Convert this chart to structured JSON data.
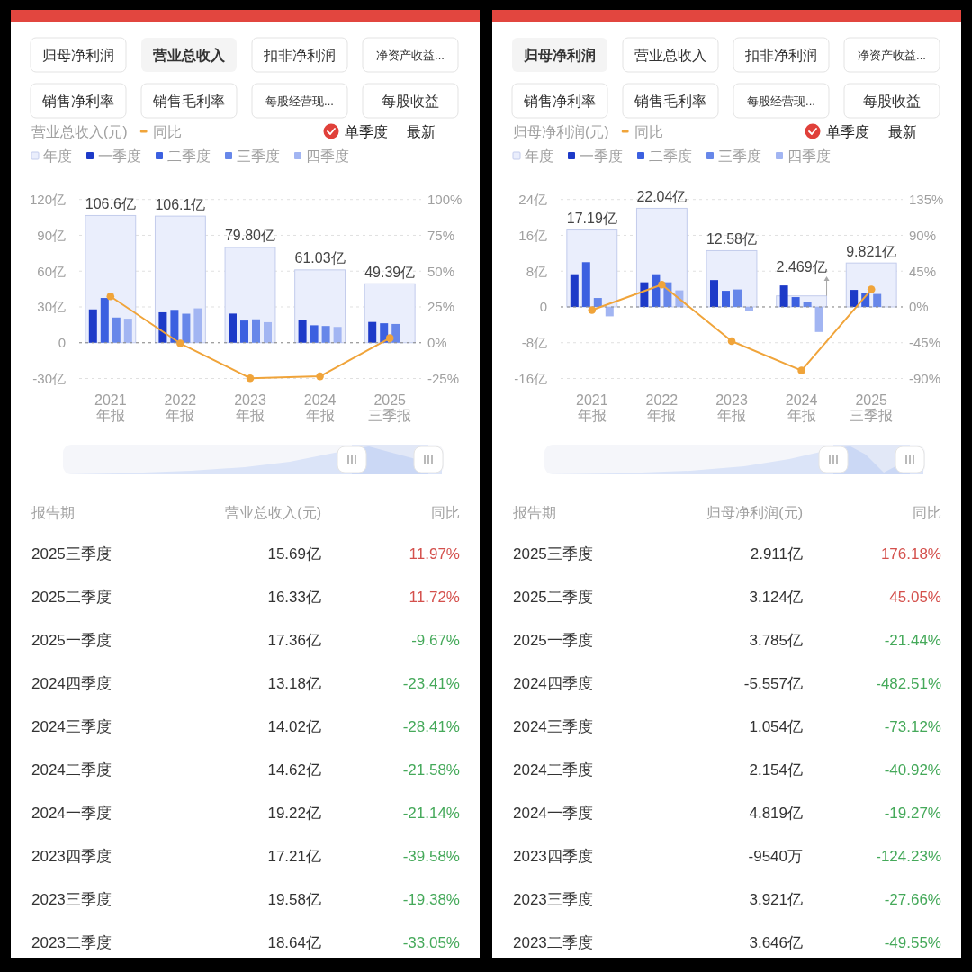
{
  "chart_data": [
    {
      "type": "other",
      "categories": [
        "归母净利润",
        "营业总收入",
        "扣非净利润",
        "净资产收益...",
        "销售净利率",
        "销售毛利率",
        "每股经营现...",
        "每股收益"
      ],
      "colors": [
        "#ffffff",
        "#f4f4f4",
        "#ffffff",
        "#ffffff",
        "#ffffff",
        "#ffffff",
        "#ffffff",
        "#ffffff"
      ]
    },
    {
      "type": "bar",
      "ylabel": "营业总收入(元)",
      "annotations": [
        "单季度",
        "最新"
      ],
      "categories": [
        "2021\n年报",
        "2022\n年报",
        "2023\n年报",
        "2024\n年报",
        "2025\n三季报"
      ],
      "series": [
        {
          "name": "同比",
          "type": "line",
          "axis": "y2",
          "color": "#f0a43a",
          "values": [
            32.4,
            -0.5,
            -24.8,
            -23.5,
            3.2
          ]
        },
        {
          "name": "年度",
          "color": "#eaeefc",
          "values": [
            106.6,
            106.1,
            79.8,
            61.03,
            49.39
          ],
          "value_labels": [
            "106.6亿",
            "106.1亿",
            "79.80亿",
            "61.03亿",
            "49.39亿"
          ]
        },
        {
          "name": "一季度",
          "color": "#1d3ac8",
          "values": [
            27.9,
            25.5,
            24.4,
            19.2,
            17.4
          ]
        },
        {
          "name": "二季度",
          "color": "#3c60e0",
          "values": [
            37.5,
            27.5,
            18.6,
            14.6,
            16.3
          ]
        },
        {
          "name": "三季度",
          "color": "#6787e9",
          "values": [
            21.1,
            24.3,
            19.6,
            14.0,
            15.7
          ]
        },
        {
          "name": "四季度",
          "color": "#a2b5f2",
          "values": [
            20.1,
            28.8,
            17.2,
            13.2,
            null
          ]
        }
      ],
      "ylim": [
        -30,
        120
      ],
      "yticks": [
        {
          "value": -30,
          "label": "-30亿"
        },
        0,
        {
          "value": 30,
          "label": "30亿"
        },
        {
          "value": 60,
          "label": "60亿"
        },
        {
          "value": 90,
          "label": "90亿"
        },
        {
          "value": 120,
          "label": "120亿"
        }
      ],
      "y2lim": [
        -25,
        100
      ],
      "y2ticks": [
        {
          "value": -25,
          "label": "-25%"
        },
        {
          "value": 0,
          "label": "0%"
        },
        {
          "value": 25,
          "label": "25%"
        },
        {
          "value": 50,
          "label": "50%"
        },
        {
          "value": 75,
          "label": "75%"
        },
        {
          "value": 100,
          "label": "100%"
        }
      ],
      "ref_lines": [
        {
          "axis": "y",
          "value": 0,
          "color": "#8a8a8a",
          "line_style": "dashed"
        }
      ],
      "grid": "y",
      "legend": "top left",
      "marker": "circle"
    },
    {
      "type": "other",
      "xlabel": "报告期",
      "categories": [
        "2025三季度",
        "2025二季度",
        "2025一季度",
        "2024四季度",
        "2024三季度",
        "2024二季度",
        "2024一季度",
        "2023四季度",
        "2023三季度",
        "2023二季度"
      ],
      "series": [
        {
          "name": "营业总收入(元)",
          "values": [
            15.69,
            16.33,
            17.36,
            13.18,
            14.02,
            14.62,
            19.22,
            17.21,
            19.58,
            18.64
          ],
          "value_labels": [
            "15.69亿",
            "16.33亿",
            "17.36亿",
            "13.18亿",
            "14.02亿",
            "14.62亿",
            "19.22亿",
            "17.21亿",
            "19.58亿",
            "18.64亿"
          ]
        },
        {
          "name": "同比",
          "values": [
            11.97,
            11.72,
            -9.67,
            -23.41,
            -28.41,
            -21.58,
            -21.14,
            -39.58,
            -19.38,
            -33.05
          ],
          "value_labels": [
            "11.97%",
            "11.72%",
            "-9.67%",
            "-23.41%",
            "-28.41%",
            "-21.58%",
            "-21.14%",
            "-39.58%",
            "-19.38%",
            "-33.05%"
          ],
          "colors": [
            "#d4504c",
            "#d4504c",
            "#45a95a",
            "#45a95a",
            "#45a95a",
            "#45a95a",
            "#45a95a",
            "#45a95a",
            "#45a95a",
            "#45a95a"
          ]
        }
      ]
    },
    {
      "type": "other",
      "categories": [
        "归母净利润",
        "营业总收入",
        "扣非净利润",
        "净资产收益...",
        "销售净利率",
        "销售毛利率",
        "每股经营现...",
        "每股收益"
      ],
      "colors": [
        "#f4f4f4",
        "#ffffff",
        "#ffffff",
        "#ffffff",
        "#ffffff",
        "#ffffff",
        "#ffffff",
        "#ffffff"
      ]
    },
    {
      "type": "bar",
      "ylabel": "归母净利润(元)",
      "annotations": [
        "单季度",
        "最新"
      ],
      "categories": [
        "2021\n年报",
        "2022\n年报",
        "2023\n年报",
        "2024\n年报",
        "2025\n三季报"
      ],
      "series": [
        {
          "name": "同比",
          "type": "line",
          "axis": "y2",
          "color": "#f0a43a",
          "values": [
            -4,
            28,
            -43,
            -80,
            22
          ]
        },
        {
          "name": "年度",
          "color": "#eaeefc",
          "values": [
            17.19,
            22.04,
            12.58,
            2.469,
            9.821
          ],
          "value_labels": [
            "17.19亿",
            "22.04亿",
            "12.58亿",
            "2.469亿",
            "9.821亿"
          ]
        },
        {
          "name": "一季度",
          "color": "#1d3ac8",
          "values": [
            7.3,
            5.5,
            6.0,
            4.8,
            3.8
          ]
        },
        {
          "name": "二季度",
          "color": "#3c60e0",
          "values": [
            10.0,
            7.3,
            3.6,
            2.2,
            3.1
          ]
        },
        {
          "name": "三季度",
          "color": "#6787e9",
          "values": [
            2.0,
            5.5,
            3.9,
            1.1,
            2.9
          ]
        },
        {
          "name": "四季度",
          "color": "#a2b5f2",
          "values": [
            -2.1,
            3.7,
            -1.0,
            -5.6,
            null
          ]
        }
      ],
      "ylim": [
        -16,
        24
      ],
      "yticks": [
        {
          "value": -16,
          "label": "-16亿"
        },
        {
          "value": -8,
          "label": "-8亿"
        },
        0,
        {
          "value": 8,
          "label": "8亿"
        },
        {
          "value": 16,
          "label": "16亿"
        },
        {
          "value": 24,
          "label": "24亿"
        }
      ],
      "y2lim": [
        -90,
        135
      ],
      "y2ticks": [
        {
          "value": -90,
          "label": "-90%"
        },
        {
          "value": -45,
          "label": "-45%"
        },
        {
          "value": 0,
          "label": "0%"
        },
        {
          "value": 45,
          "label": "45%"
        },
        {
          "value": 90,
          "label": "90%"
        },
        {
          "value": 135,
          "label": "135%"
        }
      ],
      "ref_lines": [
        {
          "axis": "y",
          "value": 0,
          "color": "#8a8a8a",
          "line_style": "dashed"
        }
      ],
      "grid": "y",
      "legend": "top left",
      "marker": "circle"
    },
    {
      "type": "other",
      "xlabel": "报告期",
      "categories": [
        "2025三季度",
        "2025二季度",
        "2025一季度",
        "2024四季度",
        "2024三季度",
        "2024二季度",
        "2024一季度",
        "2023四季度",
        "2023三季度",
        "2023二季度"
      ],
      "series": [
        {
          "name": "归母净利润(元)",
          "values": [
            2.911,
            3.124,
            3.785,
            -5.557,
            1.054,
            2.154,
            4.819,
            -9540,
            3.921,
            3.646
          ],
          "value_labels": [
            "2.911亿",
            "3.124亿",
            "3.785亿",
            "-5.557亿",
            "1.054亿",
            "2.154亿",
            "4.819亿",
            "-9540万",
            "3.921亿",
            "3.646亿"
          ]
        },
        {
          "name": "同比",
          "values": [
            176.18,
            45.05,
            -21.44,
            -482.51,
            -73.12,
            -40.92,
            -19.27,
            -124.23,
            -27.66,
            -49.55
          ],
          "value_labels": [
            "176.18%",
            "45.05%",
            "-21.44%",
            "-482.51%",
            "-73.12%",
            "-40.92%",
            "-19.27%",
            "-124.23%",
            "-27.66%",
            "-49.55%"
          ],
          "colors": [
            "#d4504c",
            "#d4504c",
            "#45a95a",
            "#45a95a",
            "#45a95a",
            "#45a95a",
            "#45a95a",
            "#45a95a",
            "#45a95a",
            "#45a95a"
          ]
        }
      ]
    }
  ]
}
